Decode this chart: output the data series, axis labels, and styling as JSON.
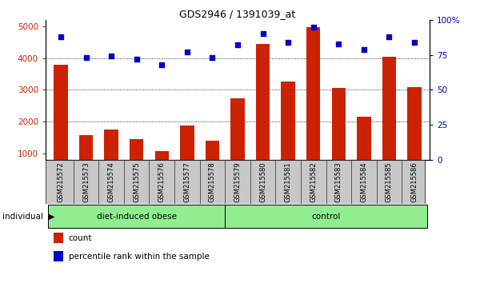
{
  "title": "GDS2946 / 1391039_at",
  "samples": [
    "GSM215572",
    "GSM215573",
    "GSM215574",
    "GSM215575",
    "GSM215576",
    "GSM215577",
    "GSM215578",
    "GSM215579",
    "GSM215580",
    "GSM215581",
    "GSM215582",
    "GSM215583",
    "GSM215584",
    "GSM215585",
    "GSM215586"
  ],
  "counts": [
    3780,
    1590,
    1750,
    1450,
    1080,
    1870,
    1400,
    2730,
    4430,
    3270,
    4960,
    3060,
    2160,
    4050,
    3090
  ],
  "percentiles": [
    88,
    73,
    74,
    72,
    68,
    77,
    73,
    82,
    90,
    84,
    95,
    83,
    79,
    88,
    84
  ],
  "group_boundary": 7,
  "bar_color": "#CC2200",
  "dot_color": "#0000CC",
  "ylim_left": [
    800,
    5200
  ],
  "ylim_right": [
    0,
    100
  ],
  "yticks_left": [
    1000,
    2000,
    3000,
    4000,
    5000
  ],
  "yticks_right": [
    0,
    25,
    50,
    75,
    100
  ],
  "grid_values": [
    2000,
    3000,
    4000
  ],
  "bg_color": "#FFFFFF",
  "bar_width": 0.55,
  "legend_count_label": "count",
  "legend_pct_label": "percentile rank within the sample",
  "individual_label": "individual",
  "group1_label": "diet-induced obese",
  "group2_label": "control",
  "group_color": "#90EE90",
  "tickbox_color": "#C8C8C8"
}
